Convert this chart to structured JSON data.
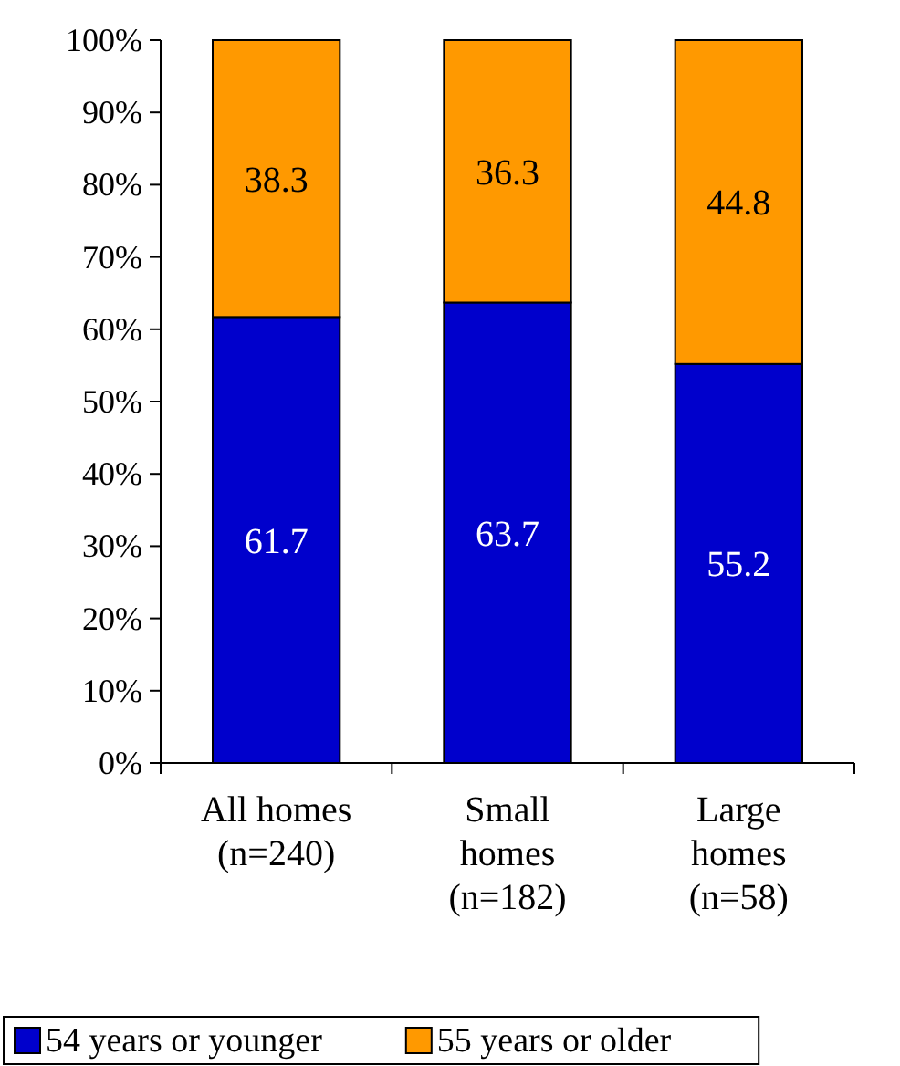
{
  "chart_data": {
    "type": "bar",
    "stacked": true,
    "categories": [
      "All homes\n(n=240)",
      "Small\nhomes\n(n=182)",
      "Large\nhomes\n(n=58)"
    ],
    "series": [
      {
        "name": "54 years or younger",
        "color": "#0000cc",
        "values": [
          61.7,
          63.7,
          55.2
        ]
      },
      {
        "name": "55 years or older",
        "color": "#ff9900",
        "values": [
          38.3,
          36.3,
          44.8
        ]
      }
    ],
    "ylim": [
      0,
      100
    ],
    "yticks": [
      {
        "value": 0,
        "label": "0%"
      },
      {
        "value": 10,
        "label": "10%"
      },
      {
        "value": 20,
        "label": "20%"
      },
      {
        "value": 30,
        "label": "30%"
      },
      {
        "value": 40,
        "label": "40%"
      },
      {
        "value": 50,
        "label": "50%"
      },
      {
        "value": 60,
        "label": "60%"
      },
      {
        "value": 70,
        "label": "70%"
      },
      {
        "value": 80,
        "label": "80%"
      },
      {
        "value": 90,
        "label": "90%"
      },
      {
        "value": 100,
        "label": "100%"
      }
    ],
    "data_labels": true,
    "legend": "bottom",
    "grid": false
  }
}
